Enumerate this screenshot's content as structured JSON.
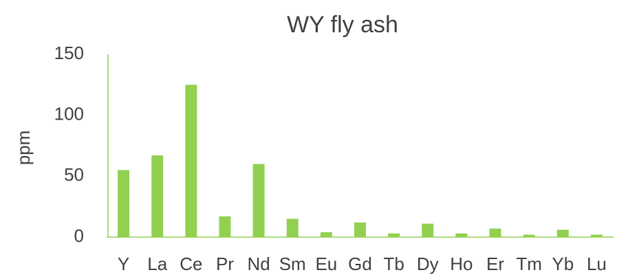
{
  "chart_data": {
    "type": "bar",
    "title": "WY fly ash",
    "y_label": "ppm",
    "categories": [
      "Y",
      "La",
      "Ce",
      "Pr",
      "Nd",
      "Sm",
      "Eu",
      "Gd",
      "Tb",
      "Dy",
      "Ho",
      "Er",
      "Tm",
      "Yb",
      "Lu"
    ],
    "values": [
      55,
      67,
      125,
      17,
      60,
      15,
      4,
      12,
      3,
      11,
      3,
      7,
      2,
      6,
      2
    ],
    "color": "#92d050",
    "ylim": [
      0,
      150
    ],
    "yticks": [
      0,
      50,
      100,
      150
    ],
    "grid": false
  }
}
